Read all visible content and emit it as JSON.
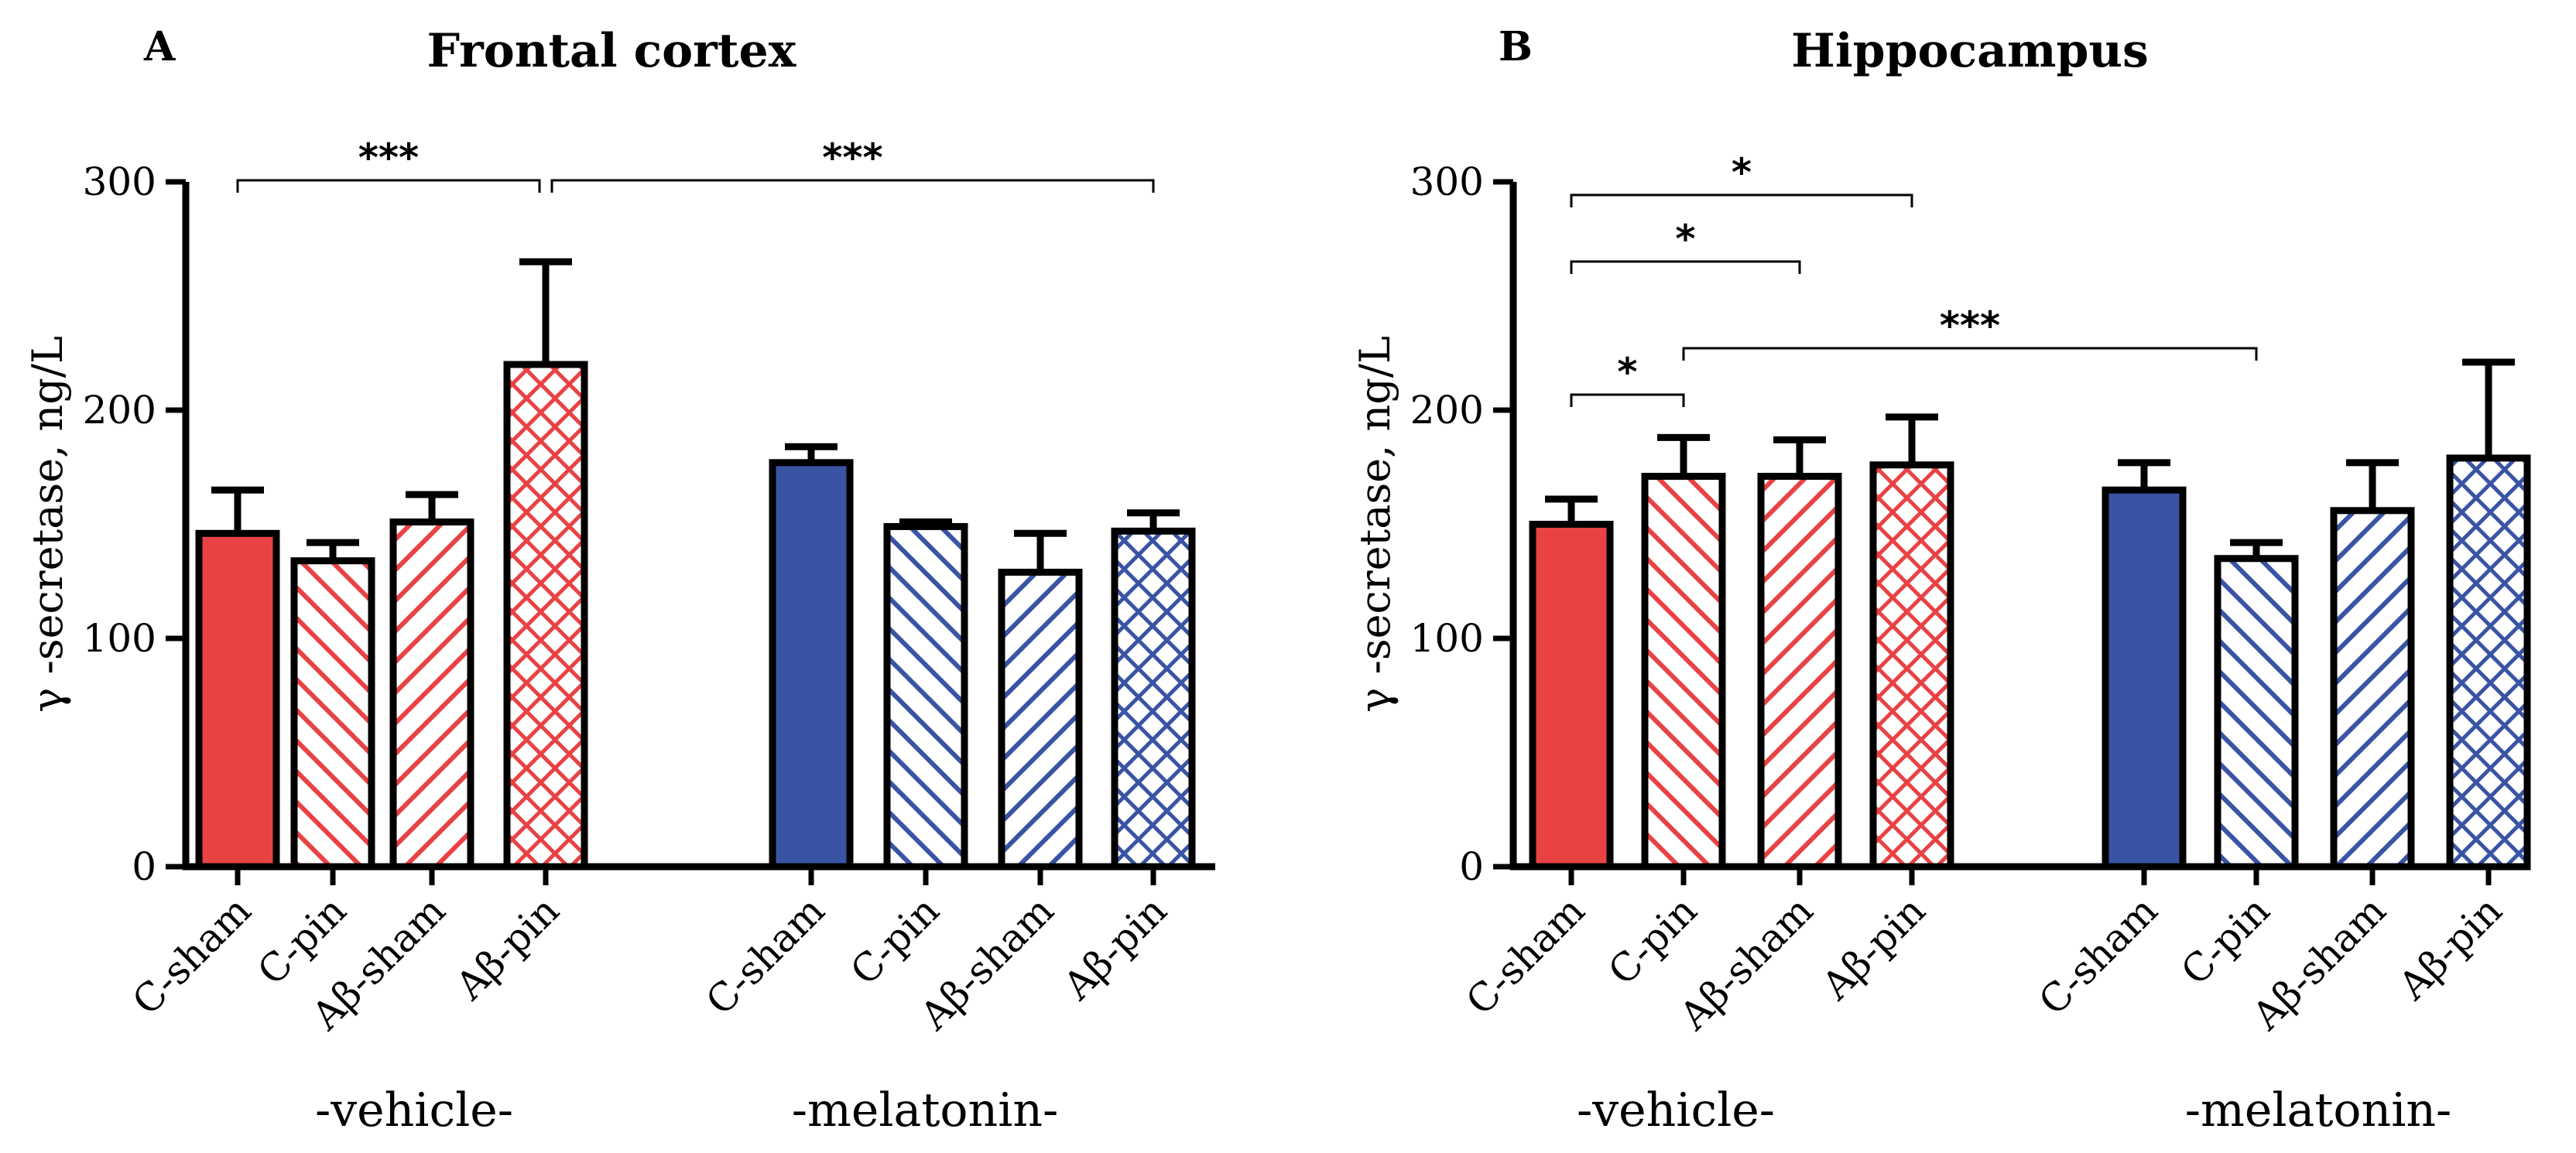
{
  "chart_data": [
    {
      "type": "bar",
      "panel": "A",
      "title": "Frontal cortex",
      "ylabel": "γ -secretase, ng/L",
      "ylim": [
        0,
        300
      ],
      "yticks": [
        "0",
        "100",
        "200",
        "300"
      ],
      "categories": [
        "C-sham",
        "C-pin",
        "Aβ-sham",
        "Aβ-pin",
        "C-sham",
        "C-pin",
        "Aβ-sham",
        "Aβ-pin"
      ],
      "groups": [
        "-vehicle-",
        "-melatonin-"
      ],
      "values": [
        146,
        134,
        151,
        220,
        177,
        149,
        129,
        147
      ],
      "errors": [
        19,
        8,
        12,
        45,
        7,
        2,
        17,
        8
      ],
      "colors": [
        "#e94244",
        "#3a54a4"
      ],
      "significance": [
        {
          "from": 0,
          "to": 3,
          "label": "***"
        },
        {
          "from": 3,
          "to": 7,
          "label": "***"
        }
      ]
    },
    {
      "type": "bar",
      "panel": "B",
      "title": "Hippocampus",
      "ylabel": "γ -secretase, ng/L",
      "ylim": [
        0,
        300
      ],
      "yticks": [
        "0",
        "100",
        "200",
        "300"
      ],
      "categories": [
        "C-sham",
        "C-pin",
        "Aβ-sham",
        "Aβ-pin",
        "C-sham",
        "C-pin",
        "Aβ-sham",
        "Aβ-pin"
      ],
      "groups": [
        "-vehicle-",
        "-melatonin-"
      ],
      "values": [
        150,
        171,
        171,
        176,
        165,
        135,
        156,
        179
      ],
      "errors": [
        11,
        17,
        16,
        21,
        12,
        7,
        21,
        42
      ],
      "colors": [
        "#e94244",
        "#3a54a4"
      ],
      "significance": [
        {
          "from": 0,
          "to": 3,
          "label": "*"
        },
        {
          "from": 0,
          "to": 2,
          "label": "*"
        },
        {
          "from": 0,
          "to": 1,
          "label": "*"
        },
        {
          "from": 1,
          "to": 5,
          "label": "***"
        }
      ]
    }
  ]
}
